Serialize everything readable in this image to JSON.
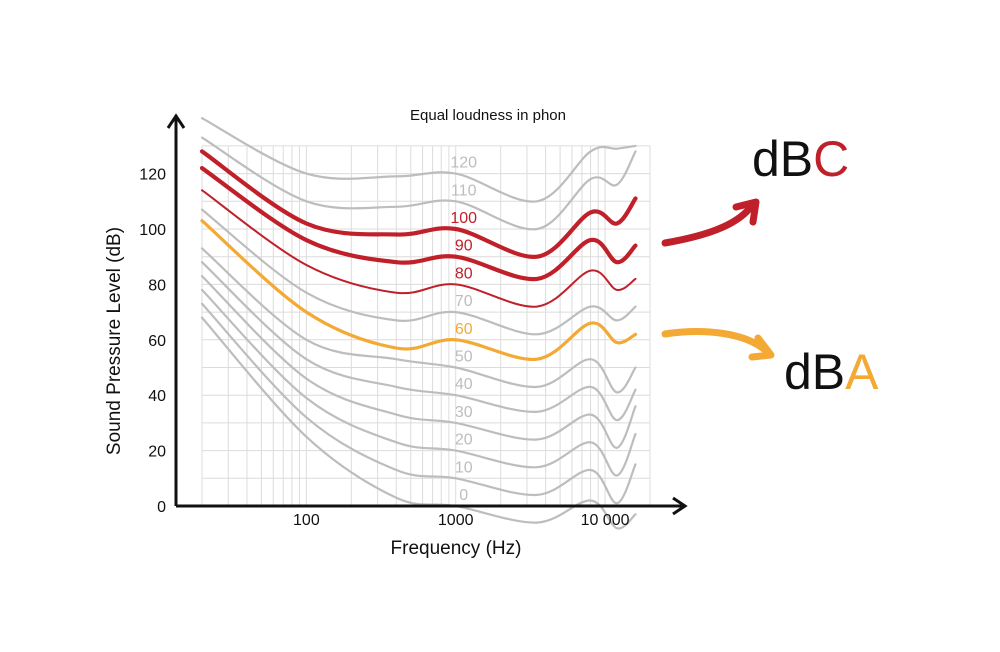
{
  "chart_data": {
    "type": "line",
    "title": "Equal loudness in phon",
    "xlabel": "Frequency (Hz)",
    "ylabel": "Sound Pressure Level (dB)",
    "x_scale": "log",
    "xlim": [
      20,
      20000
    ],
    "ylim": [
      0,
      130
    ],
    "x_ticks": [
      {
        "value": 100,
        "label": "100"
      },
      {
        "value": 1000,
        "label": "1000"
      },
      {
        "value": 10000,
        "label": "10 000"
      }
    ],
    "y_ticks": [
      {
        "value": 0,
        "label": "0"
      },
      {
        "value": 20,
        "label": "20"
      },
      {
        "value": 40,
        "label": "40"
      },
      {
        "value": 60,
        "label": "60"
      },
      {
        "value": 80,
        "label": "80"
      },
      {
        "value": 100,
        "label": "100"
      },
      {
        "value": 120,
        "label": "120"
      }
    ],
    "grid": true,
    "x": [
      20,
      100,
      400,
      1000,
      3500,
      8000,
      12000,
      16000
    ],
    "series": [
      {
        "name": "0",
        "values": [
          68,
          25,
          3,
          0,
          -6,
          2,
          -8,
          -3
        ]
      },
      {
        "name": "10",
        "values": [
          73,
          32,
          13,
          10,
          4,
          13,
          1,
          15
        ]
      },
      {
        "name": "20",
        "values": [
          78,
          39,
          23,
          20,
          14,
          23,
          11,
          26
        ]
      },
      {
        "name": "30",
        "values": [
          83,
          46,
          33,
          30,
          24,
          33,
          21,
          36
        ]
      },
      {
        "name": "40",
        "values": [
          88,
          53,
          43,
          40,
          34,
          43,
          31,
          42
        ]
      },
      {
        "name": "50",
        "values": [
          93,
          60,
          53,
          50,
          43,
          53,
          41,
          50
        ]
      },
      {
        "name": "60",
        "values": [
          103,
          70,
          57,
          60,
          53,
          66,
          59,
          62
        ]
      },
      {
        "name": "70",
        "values": [
          107,
          77,
          67,
          70,
          62,
          72,
          67,
          72
        ]
      },
      {
        "name": "80",
        "values": [
          114,
          87,
          77,
          80,
          72,
          85,
          78,
          82
        ]
      },
      {
        "name": "90",
        "values": [
          122,
          96,
          88,
          90,
          82,
          96,
          88,
          94
        ]
      },
      {
        "name": "100",
        "values": [
          128,
          102,
          98,
          100,
          90,
          106,
          102,
          111
        ]
      },
      {
        "name": "110",
        "values": [
          133,
          110,
          108,
          110,
          100,
          118,
          116,
          128
        ]
      },
      {
        "name": "120",
        "values": [
          140,
          120,
          119,
          120,
          110,
          128,
          129,
          130
        ]
      }
    ],
    "label_x": 1000,
    "colors": {
      "grey": "#bdbdbd",
      "red": "#c0202a",
      "orange": "#f3a933",
      "axis": "#111111"
    },
    "highlight": {
      "red": [
        "80",
        "90",
        "100"
      ],
      "orange": [
        "60"
      ]
    }
  },
  "callouts": {
    "dbc": {
      "prefix": "dB",
      "accent": "C"
    },
    "dba": {
      "prefix": "dB",
      "accent": "A"
    }
  }
}
